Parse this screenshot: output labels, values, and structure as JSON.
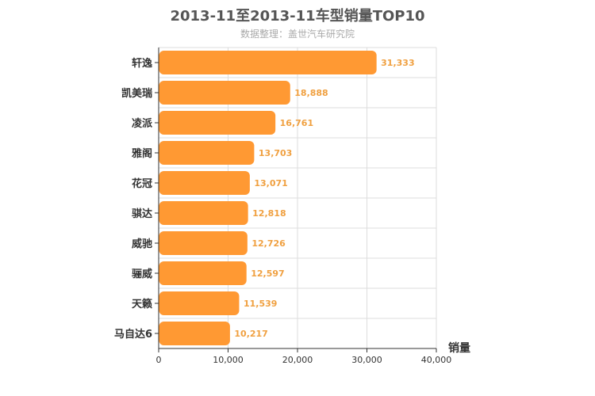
{
  "chart_data": {
    "type": "bar",
    "orientation": "horizontal",
    "title": "2013-11至2013-11车型销量TOP10",
    "subtitle": "数据整理：盖世汽车研究院",
    "xlabel": "销量",
    "ylabel": "",
    "xlim": [
      0,
      40000
    ],
    "xticks": [
      "0",
      "10,000",
      "20,000",
      "30,000",
      "40,000"
    ],
    "xtick_values": [
      0,
      10000,
      20000,
      30000,
      40000
    ],
    "grid": true,
    "categories": [
      "轩逸",
      "凯美瑞",
      "凌派",
      "雅阁",
      "花冠",
      "骐达",
      "威驰",
      "骊威",
      "天籁",
      "马自达6"
    ],
    "values": [
      31333,
      18888,
      16761,
      13703,
      13071,
      12818,
      12726,
      12597,
      11539,
      10217
    ],
    "value_labels": [
      "31,333",
      "18,888",
      "16,761",
      "13,703",
      "13,071",
      "12,818",
      "12,726",
      "12,597",
      "11,539",
      "10,217"
    ],
    "colors": {
      "bar": "#ff9933",
      "label": "#f0a040",
      "grid": "#dddddd",
      "axis": "#333333"
    }
  }
}
